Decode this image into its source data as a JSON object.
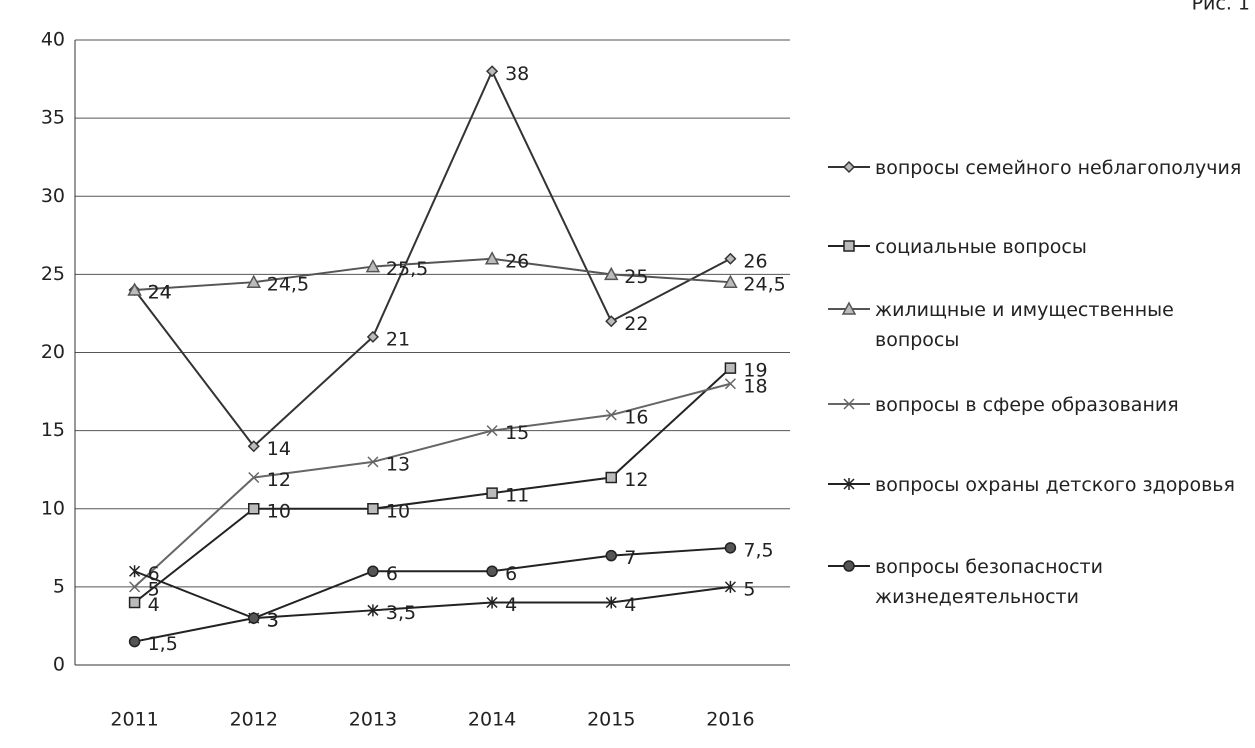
{
  "chart_data": {
    "type": "line",
    "annotation": "Рис. 1",
    "categories": [
      "2011",
      "2012",
      "2013",
      "2014",
      "2015",
      "2016"
    ],
    "ylim": [
      0,
      40
    ],
    "yticks": [
      0,
      5,
      10,
      15,
      20,
      25,
      30,
      35,
      40
    ],
    "grid": true,
    "legend": "right",
    "series": [
      {
        "name": "вопросы семейного неблагополучия",
        "color": "#333333",
        "marker": "diamond",
        "values": [
          24,
          14,
          21,
          38,
          22,
          26
        ],
        "value_labels": [
          "24",
          "14",
          "21",
          "38",
          "22",
          "26"
        ]
      },
      {
        "name": "социальные вопросы",
        "color": "#222222",
        "marker": "square",
        "values": [
          4,
          10,
          10,
          11,
          12,
          19
        ],
        "value_labels": [
          "4",
          "10",
          "10",
          "11",
          "12",
          "19"
        ]
      },
      {
        "name": "жилищные и имущественные вопросы",
        "color": "#555555",
        "marker": "triangle",
        "values": [
          24,
          24.5,
          25.5,
          26,
          25,
          24.5
        ],
        "value_labels": [
          "24",
          "24,5",
          "25,5",
          "26",
          "25",
          "24,5"
        ]
      },
      {
        "name": "вопросы в сфере образования",
        "color": "#666666",
        "marker": "x",
        "values": [
          5,
          12,
          13,
          15,
          16,
          18
        ],
        "value_labels": [
          "5",
          "12",
          "13",
          "15",
          "16",
          "18"
        ]
      },
      {
        "name": "вопросы охраны детского здоровья",
        "color": "#222222",
        "marker": "star",
        "values": [
          6,
          3,
          3.5,
          4,
          4,
          5
        ],
        "value_labels": [
          "6",
          "3",
          "3,5",
          "4",
          "4",
          "5"
        ]
      },
      {
        "name": "вопросы безопасности жизнедеятельности",
        "color": "#222222",
        "marker": "circle",
        "values": [
          1.5,
          3,
          6,
          6,
          7,
          7.5
        ],
        "value_labels": [
          "1,5",
          "3",
          "6",
          "6",
          "7",
          "7,5"
        ]
      }
    ]
  }
}
